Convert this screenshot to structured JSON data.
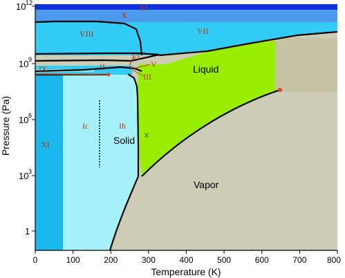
{
  "x_axis": {
    "label": "Temperature (K)",
    "ticks": [
      "0",
      "100",
      "200",
      "300",
      "400",
      "500",
      "600",
      "700",
      "800"
    ]
  },
  "y_axis": {
    "label": "Pressure (Pa)",
    "ticks": [
      {
        "base": "1",
        "exp": ""
      },
      {
        "base": "10",
        "exp": "3"
      },
      {
        "base": "10",
        "exp": "6"
      },
      {
        "base": "10",
        "exp": "9"
      },
      {
        "base": "10",
        "exp": "12"
      }
    ]
  },
  "regions": {
    "liquid": "Liquid",
    "solid": "Solid",
    "vapor": "Vapor"
  },
  "phases": {
    "xi_top": "XI",
    "x": "X",
    "vii": "VII",
    "viii": "VIII",
    "vi": "VI",
    "v": "V",
    "iii": "III",
    "ii": "II",
    "ix": "IX",
    "ic": "Ic",
    "ih": "Ih",
    "xi_left": "XI"
  },
  "markers": {
    "current_point": "x"
  },
  "colors": {
    "vapor": "#cdcdb5",
    "liquid": "#99ee00",
    "ice_ih": "#a6f2fc",
    "ice_xi": "#1ab8ee",
    "high_pressure": "#33ccf6",
    "ice_x": "#4d99ee",
    "top_band": "#1133dd",
    "supercritical": "#c6c2a4",
    "boundary": "#000000",
    "label_red": "#b43a10",
    "critical_point": "#e04020",
    "marker_green": "#339933"
  }
}
